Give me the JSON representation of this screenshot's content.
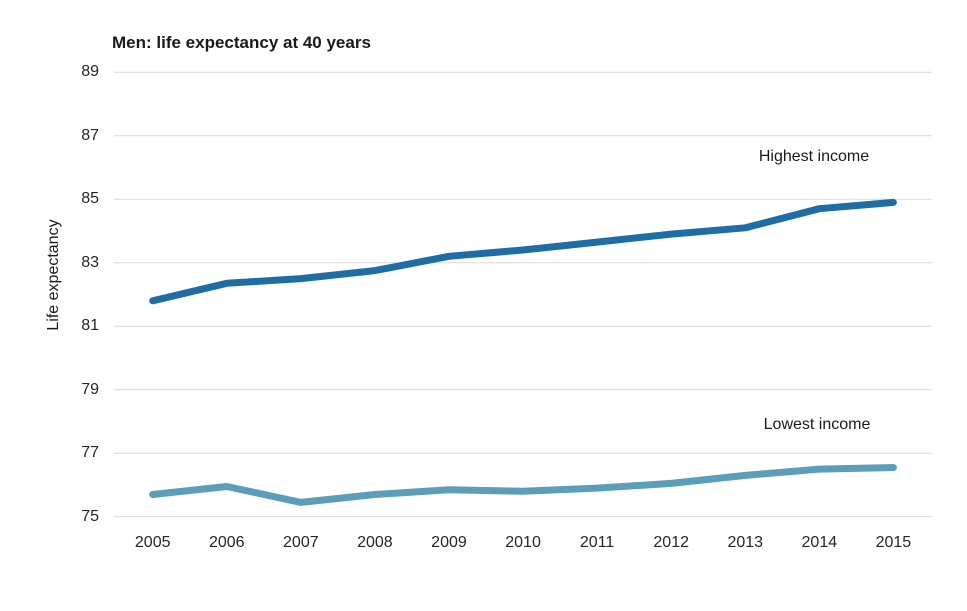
{
  "chart_data": {
    "type": "line",
    "title": "Men: life expectancy at 40 years",
    "ylabel": "Life expectancy",
    "xlabel": "",
    "categories": [
      2005,
      2006,
      2007,
      2008,
      2009,
      2010,
      2011,
      2012,
      2013,
      2014,
      2015
    ],
    "series": [
      {
        "name": "Highest income",
        "values": [
          81.8,
          82.35,
          82.5,
          82.75,
          83.2,
          83.4,
          83.65,
          83.9,
          84.1,
          84.7,
          84.9
        ],
        "color": "#1f6da5"
      },
      {
        "name": "Lowest income",
        "values": [
          75.7,
          75.95,
          75.45,
          75.7,
          75.85,
          75.8,
          75.9,
          76.05,
          76.3,
          76.5,
          76.55
        ],
        "color": "#5c9db8"
      }
    ],
    "y_ticks": [
      75,
      77,
      79,
      81,
      83,
      85,
      87,
      89
    ],
    "ylim": [
      75,
      89
    ],
    "grid": "horizontal gridlines on, every 2 units",
    "legend": "inline labels above each line",
    "gridline_color": "#d9d9d9",
    "text_color": "#262626",
    "background_color": "#ffffff"
  }
}
